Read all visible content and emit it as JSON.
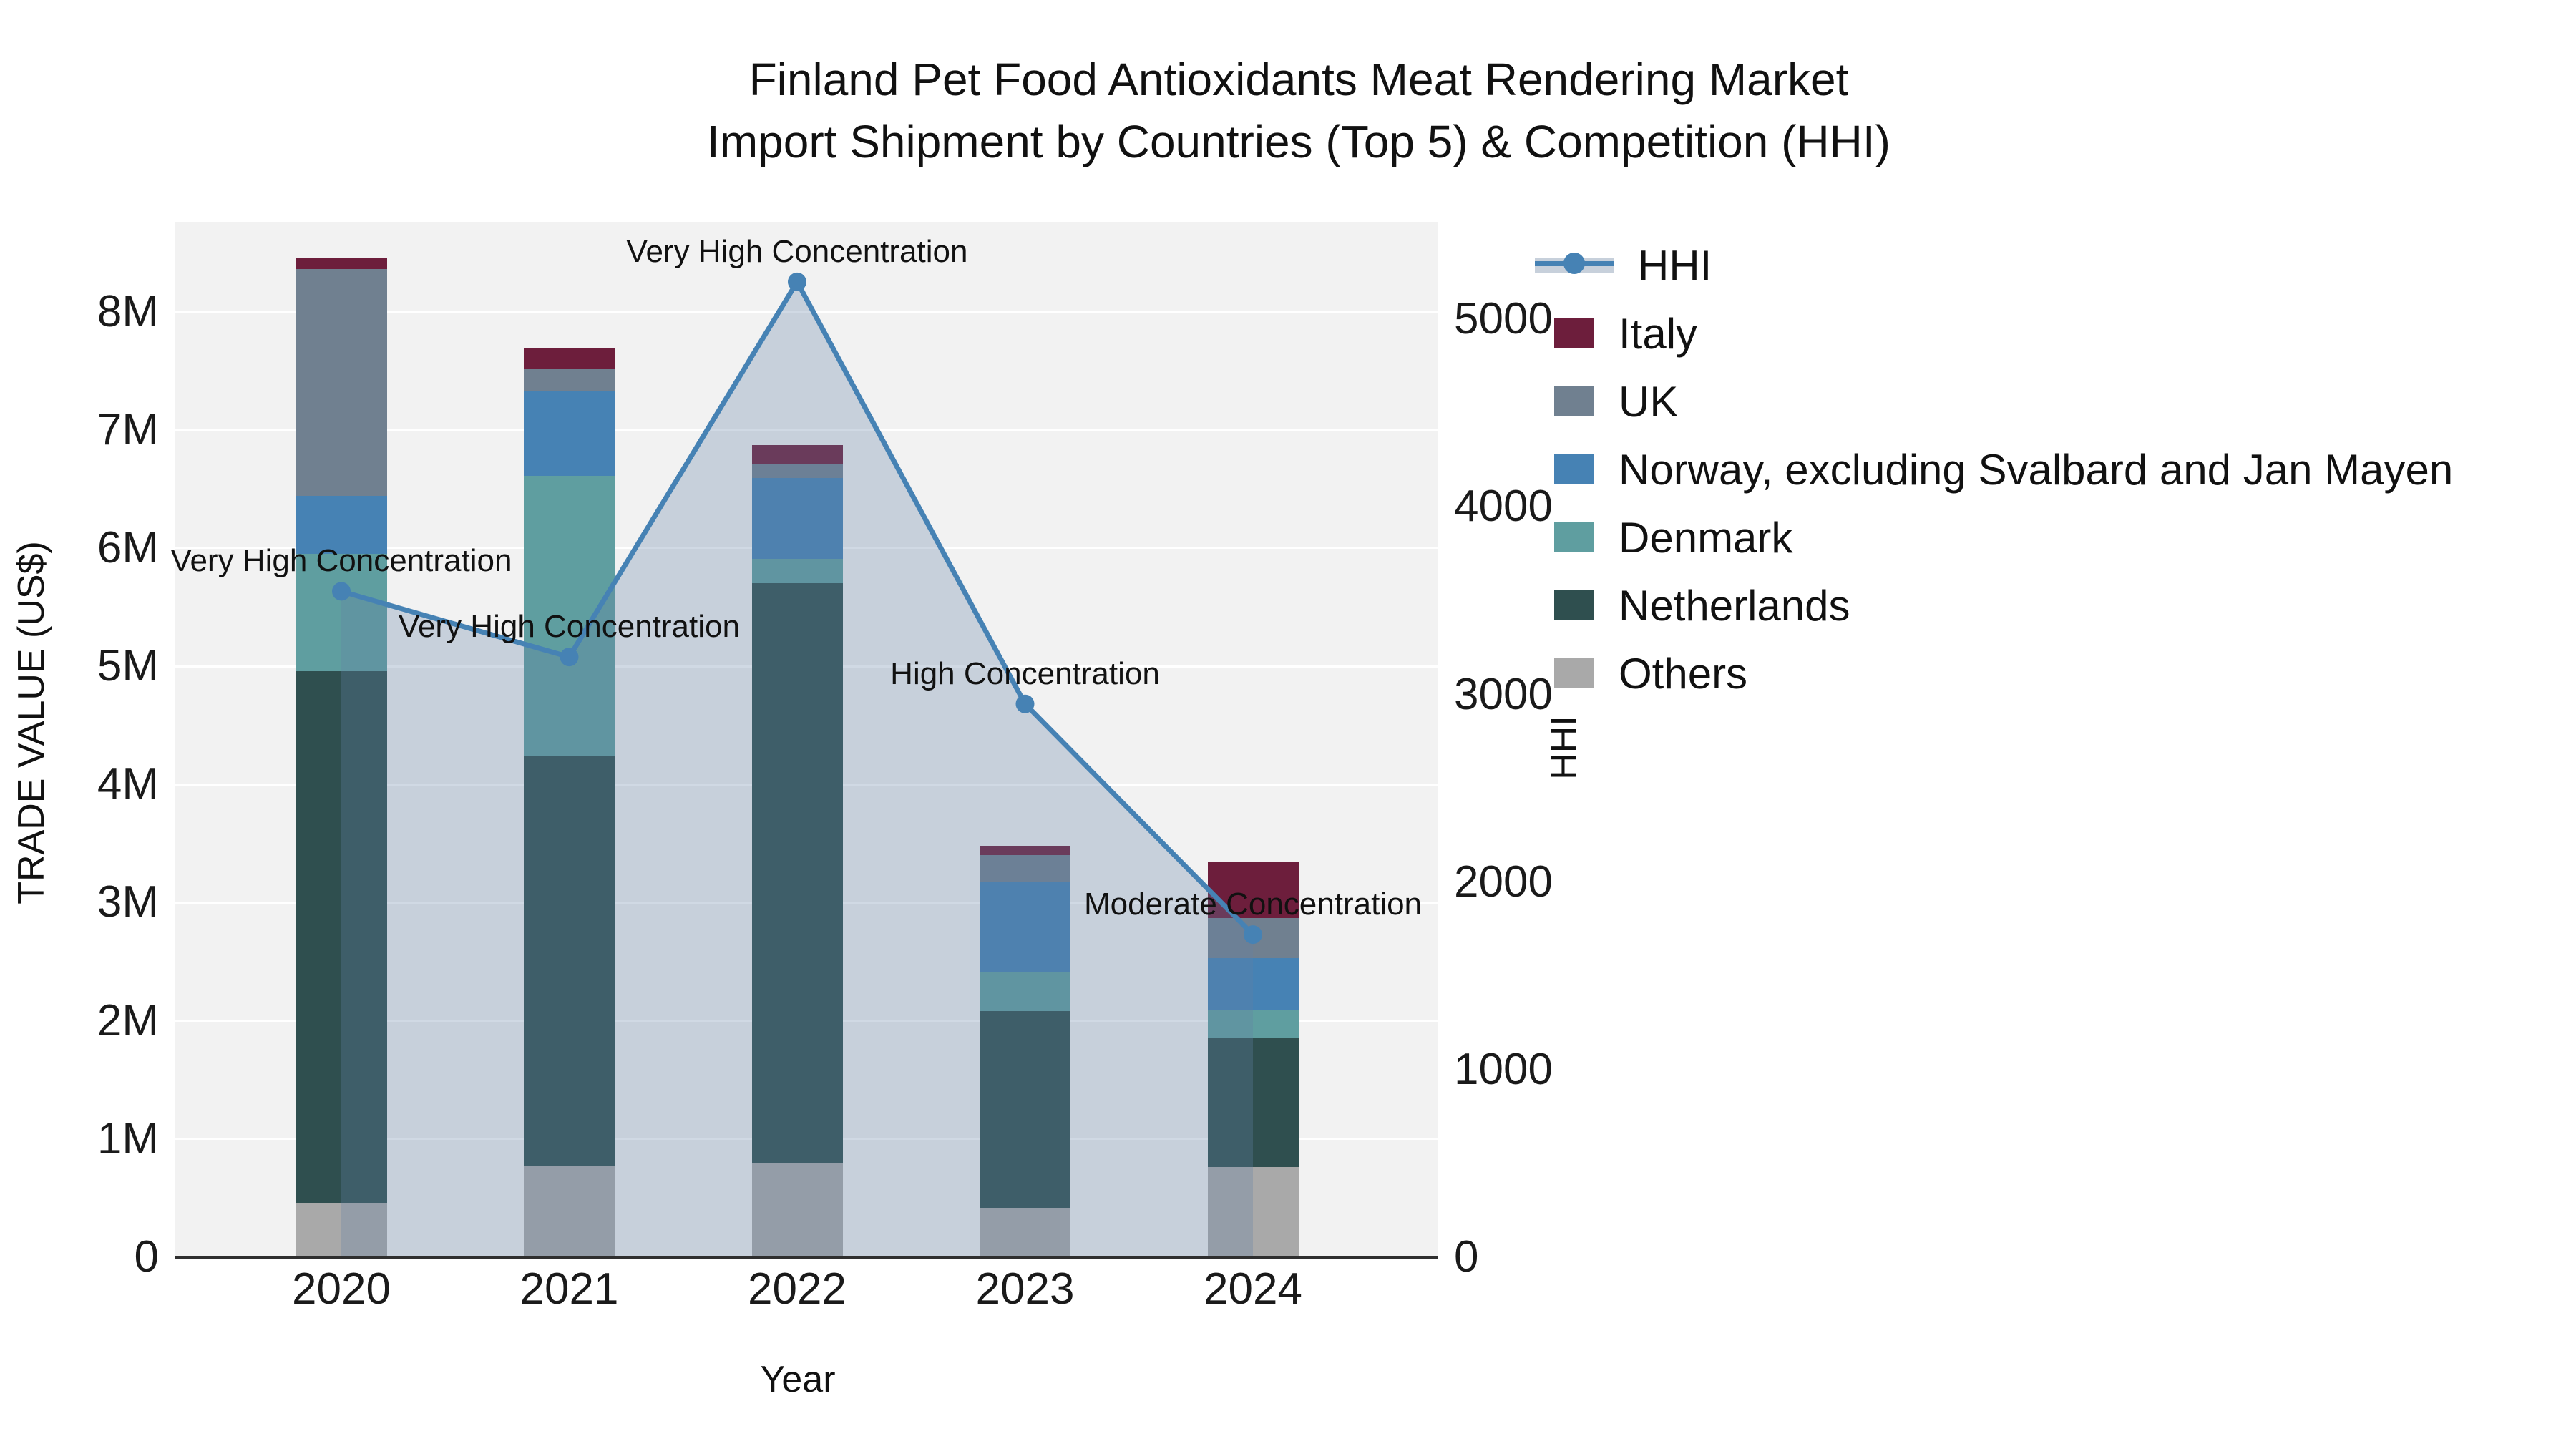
{
  "title": {
    "line1": "Finland Pet Food Antioxidants Meat Rendering Market",
    "line2": "Import Shipment by Countries (Top 5) & Competition (HHI)"
  },
  "axes": {
    "y_left": {
      "label": "TRADE VALUE (US$)",
      "tick_labels": [
        "0",
        "1M",
        "2M",
        "3M",
        "4M",
        "5M",
        "6M",
        "7M",
        "8M"
      ],
      "tick_values": [
        0,
        1000000,
        2000000,
        3000000,
        4000000,
        5000000,
        6000000,
        7000000,
        8000000
      ]
    },
    "y_right": {
      "label": "HHI",
      "tick_labels": [
        "0",
        "1000",
        "2000",
        "3000",
        "4000",
        "5000"
      ],
      "tick_values": [
        0,
        1000,
        2000,
        3000,
        4000,
        5000
      ]
    },
    "x": {
      "label": "Year",
      "tick_labels": [
        "2020",
        "2021",
        "2022",
        "2023",
        "2024"
      ]
    }
  },
  "legend": {
    "items": [
      {
        "label": "HHI",
        "type": "line",
        "color": "#4682b4"
      },
      {
        "label": "Italy",
        "type": "patch",
        "color": "#6d1e3c"
      },
      {
        "label": "UK",
        "type": "patch",
        "color": "#708090"
      },
      {
        "label": "Norway, excluding Svalbard and Jan Mayen",
        "type": "patch",
        "color": "#4682b4"
      },
      {
        "label": "Denmark",
        "type": "patch",
        "color": "#5f9ea0"
      },
      {
        "label": "Netherlands",
        "type": "patch",
        "color": "#2f4f4f"
      },
      {
        "label": "Others",
        "type": "patch",
        "color": "#a9a9a9"
      }
    ]
  },
  "chart_data": {
    "type": "bar+line",
    "categories": [
      "2020",
      "2021",
      "2022",
      "2023",
      "2024"
    ],
    "bar_unit": "Trade value (US$)",
    "stack_order_bottom_to_top": [
      "Others",
      "Netherlands",
      "Denmark",
      "Norway, excluding Svalbard and Jan Mayen",
      "UK",
      "Italy"
    ],
    "series": [
      {
        "name": "Others",
        "color": "#a9a9a9",
        "values": [
          460000,
          770000,
          800000,
          420000,
          760000
        ]
      },
      {
        "name": "Netherlands",
        "color": "#2f4f4f",
        "values": [
          4500000,
          3470000,
          4900000,
          1660000,
          1100000
        ]
      },
      {
        "name": "Denmark",
        "color": "#5f9ea0",
        "values": [
          990000,
          2370000,
          210000,
          330000,
          230000
        ]
      },
      {
        "name": "Norway, excluding Svalbard and Jan Mayen",
        "color": "#4682b4",
        "values": [
          490000,
          720000,
          680000,
          770000,
          440000
        ]
      },
      {
        "name": "UK",
        "color": "#708090",
        "values": [
          1920000,
          180000,
          120000,
          220000,
          340000
        ]
      },
      {
        "name": "Italy",
        "color": "#6d1e3c",
        "values": [
          90000,
          180000,
          160000,
          80000,
          470000
        ]
      }
    ],
    "bar_totals": [
      8450000,
      7690000,
      6870000,
      3480000,
      3340000
    ],
    "hhi_line": {
      "name": "HHI",
      "color": "#4682b4",
      "area_fill": "rgba(100,130,165,0.30)",
      "values": [
        3550,
        3200,
        5200,
        2950,
        1720
      ]
    },
    "annotations": [
      "Very High Concentration",
      "Very High Concentration",
      "Very High Concentration",
      "High Concentration",
      "Moderate Concentration"
    ],
    "ylim_left": [
      0,
      8760000
    ],
    "ylim_right": [
      0,
      5520
    ],
    "grid": true,
    "legend_position": "upper right, outside plot"
  }
}
